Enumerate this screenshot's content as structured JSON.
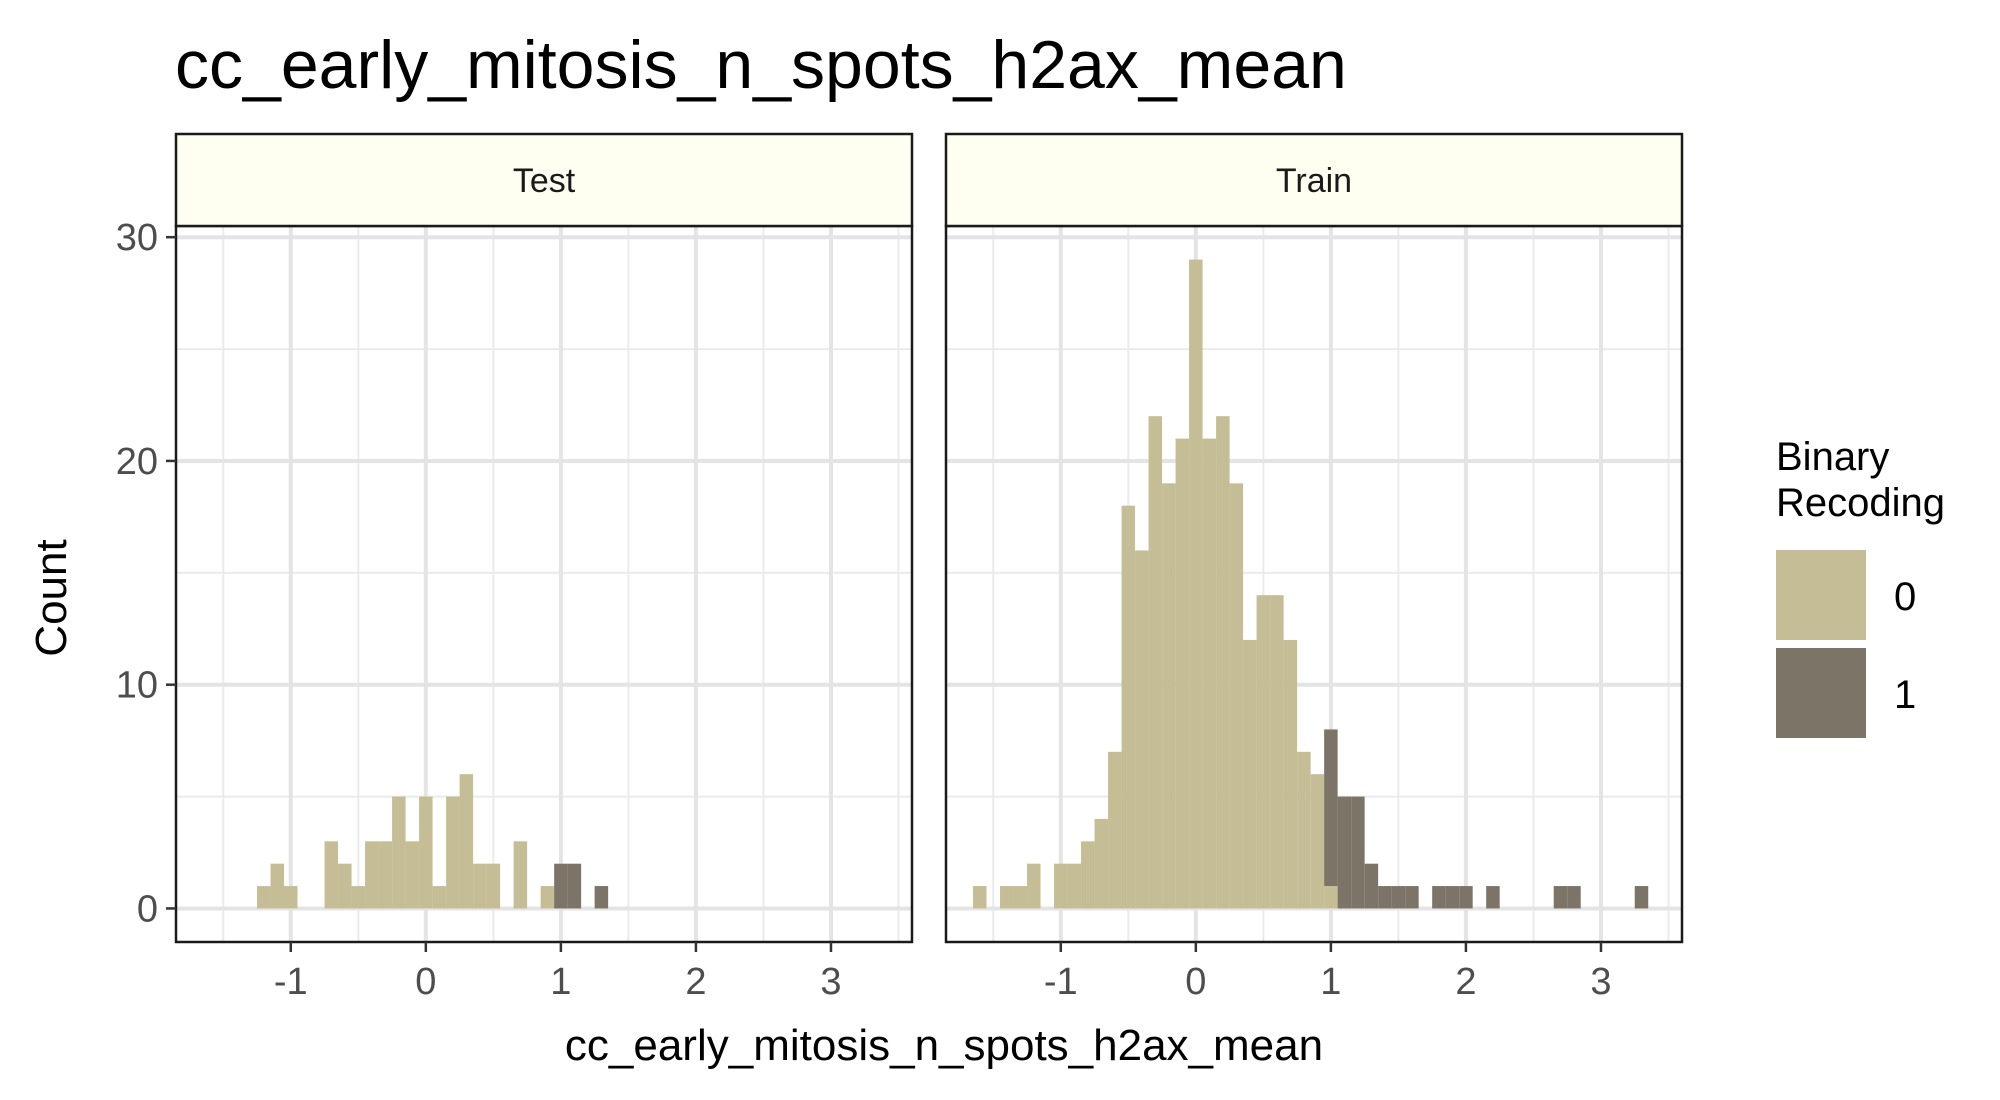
{
  "chart_data": {
    "type": "bar",
    "title": "cc_early_mitosis_n_spots_h2ax_mean",
    "xlabel": "cc_early_mitosis_n_spots_h2ax_mean",
    "ylabel": "Count",
    "xlim": [
      -1.85,
      3.6
    ],
    "ylim": [
      -1.5,
      30.5
    ],
    "x_ticks": [
      -1,
      0,
      1,
      2,
      3
    ],
    "y_ticks": [
      0,
      10,
      20,
      30
    ],
    "grid": true,
    "bin_width": 0.1,
    "colors": {
      "0": "#c5bd95",
      "1": "#7d7468"
    },
    "legend": {
      "title_lines": [
        "Binary",
        "Recoding"
      ],
      "position": "right",
      "entries": [
        {
          "key": "0",
          "label": "0"
        },
        {
          "key": "1",
          "label": "1"
        }
      ]
    },
    "panels": [
      {
        "label": "Test",
        "series": [
          {
            "name": "0",
            "bins": [
              {
                "x": -1.2,
                "count": 1
              },
              {
                "x": -1.1,
                "count": 2
              },
              {
                "x": -1.0,
                "count": 1
              },
              {
                "x": -0.7,
                "count": 3
              },
              {
                "x": -0.6,
                "count": 2
              },
              {
                "x": -0.5,
                "count": 1
              },
              {
                "x": -0.4,
                "count": 3
              },
              {
                "x": -0.3,
                "count": 3
              },
              {
                "x": -0.2,
                "count": 5
              },
              {
                "x": -0.1,
                "count": 3
              },
              {
                "x": 0.0,
                "count": 5
              },
              {
                "x": 0.1,
                "count": 1
              },
              {
                "x": 0.2,
                "count": 5
              },
              {
                "x": 0.3,
                "count": 6
              },
              {
                "x": 0.4,
                "count": 2
              },
              {
                "x": 0.5,
                "count": 2
              },
              {
                "x": 0.7,
                "count": 3
              },
              {
                "x": 0.9,
                "count": 1
              }
            ]
          },
          {
            "name": "1",
            "bins": [
              {
                "x": 1.0,
                "count": 2
              },
              {
                "x": 1.1,
                "count": 2
              },
              {
                "x": 1.3,
                "count": 1
              }
            ]
          }
        ]
      },
      {
        "label": "Train",
        "series": [
          {
            "name": "0",
            "bins": [
              {
                "x": -1.6,
                "count": 1
              },
              {
                "x": -1.4,
                "count": 1
              },
              {
                "x": -1.3,
                "count": 1
              },
              {
                "x": -1.2,
                "count": 2
              },
              {
                "x": -1.0,
                "count": 2
              },
              {
                "x": -0.9,
                "count": 2
              },
              {
                "x": -0.8,
                "count": 3
              },
              {
                "x": -0.7,
                "count": 4
              },
              {
                "x": -0.6,
                "count": 7
              },
              {
                "x": -0.5,
                "count": 18
              },
              {
                "x": -0.4,
                "count": 16
              },
              {
                "x": -0.3,
                "count": 22
              },
              {
                "x": -0.2,
                "count": 19
              },
              {
                "x": -0.1,
                "count": 21
              },
              {
                "x": 0.0,
                "count": 29
              },
              {
                "x": 0.1,
                "count": 21
              },
              {
                "x": 0.2,
                "count": 22
              },
              {
                "x": 0.3,
                "count": 19
              },
              {
                "x": 0.4,
                "count": 12
              },
              {
                "x": 0.5,
                "count": 14
              },
              {
                "x": 0.6,
                "count": 14
              },
              {
                "x": 0.7,
                "count": 12
              },
              {
                "x": 0.8,
                "count": 7
              },
              {
                "x": 0.9,
                "count": 6
              },
              {
                "x": 1.0,
                "count": 1
              }
            ]
          },
          {
            "name": "1",
            "bins": [
              {
                "x": 1.0,
                "count": 7
              },
              {
                "x": 1.1,
                "count": 5
              },
              {
                "x": 1.2,
                "count": 5
              },
              {
                "x": 1.3,
                "count": 2
              },
              {
                "x": 1.4,
                "count": 1
              },
              {
                "x": 1.5,
                "count": 1
              },
              {
                "x": 1.6,
                "count": 1
              },
              {
                "x": 1.8,
                "count": 1
              },
              {
                "x": 1.9,
                "count": 1
              },
              {
                "x": 2.0,
                "count": 1
              },
              {
                "x": 2.2,
                "count": 1
              },
              {
                "x": 2.7,
                "count": 1
              },
              {
                "x": 2.8,
                "count": 1
              },
              {
                "x": 3.3,
                "count": 1
              }
            ]
          }
        ]
      }
    ]
  }
}
